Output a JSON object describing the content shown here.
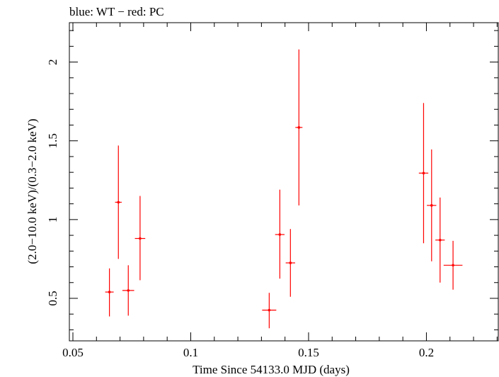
{
  "chart_data": {
    "type": "scatter",
    "title": "blue: WT − red: PC",
    "xlabel": "Time Since 54133.0 MJD (days)",
    "ylabel": "(2.0−10.0 keV)/(0.3−2.0 keV)",
    "xlim": [
      0.0485,
      0.2305
    ],
    "ylim": [
      0.23,
      2.25
    ],
    "x_ticks": [
      {
        "value": 0.05,
        "label": "0.05"
      },
      {
        "value": 0.1,
        "label": "0.1"
      },
      {
        "value": 0.15,
        "label": "0.15"
      },
      {
        "value": 0.2,
        "label": "0.2"
      }
    ],
    "y_ticks": [
      {
        "value": 0.5,
        "label": "0.5"
      },
      {
        "value": 1.0,
        "label": "1"
      },
      {
        "value": 1.5,
        "label": "1.5"
      },
      {
        "value": 2.0,
        "label": "2"
      }
    ],
    "series": [
      {
        "name": "PC",
        "color": "#ff0000",
        "points": [
          {
            "x": 0.0655,
            "xerr": 0.0018,
            "y": 0.54,
            "ylo": 0.385,
            "yhi": 0.69
          },
          {
            "x": 0.0693,
            "xerr": 0.0014,
            "y": 1.11,
            "ylo": 0.75,
            "yhi": 1.47
          },
          {
            "x": 0.0735,
            "xerr": 0.0025,
            "y": 0.55,
            "ylo": 0.39,
            "yhi": 0.71
          },
          {
            "x": 0.0785,
            "xerr": 0.0022,
            "y": 0.88,
            "ylo": 0.615,
            "yhi": 1.15
          },
          {
            "x": 0.1333,
            "xerr": 0.003,
            "y": 0.425,
            "ylo": 0.31,
            "yhi": 0.535
          },
          {
            "x": 0.1378,
            "xerr": 0.002,
            "y": 0.905,
            "ylo": 0.625,
            "yhi": 1.19
          },
          {
            "x": 0.1423,
            "xerr": 0.002,
            "y": 0.725,
            "ylo": 0.51,
            "yhi": 0.94
          },
          {
            "x": 0.1459,
            "xerr": 0.0015,
            "y": 1.585,
            "ylo": 1.09,
            "yhi": 2.08
          },
          {
            "x": 0.1988,
            "xerr": 0.002,
            "y": 1.295,
            "ylo": 0.85,
            "yhi": 1.74
          },
          {
            "x": 0.2022,
            "xerr": 0.002,
            "y": 1.09,
            "ylo": 0.735,
            "yhi": 1.445
          },
          {
            "x": 0.2058,
            "xerr": 0.002,
            "y": 0.87,
            "ylo": 0.6,
            "yhi": 1.14
          },
          {
            "x": 0.2113,
            "xerr": 0.004,
            "y": 0.71,
            "ylo": 0.555,
            "yhi": 0.865
          }
        ]
      }
    ]
  }
}
